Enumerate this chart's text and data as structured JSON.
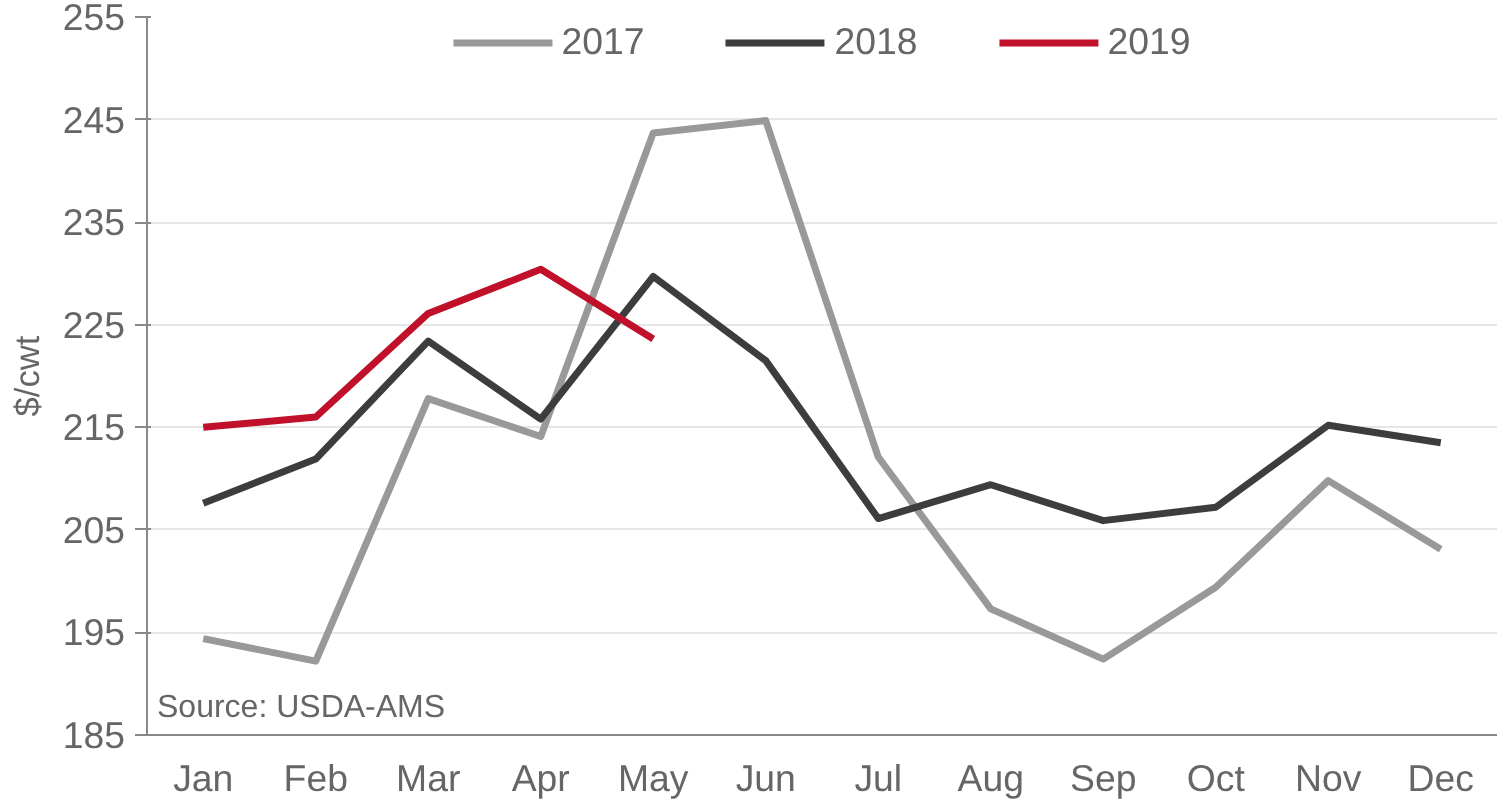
{
  "chart_data": {
    "type": "line",
    "ylabel": "$/cwt",
    "categories": [
      "Jan",
      "Feb",
      "Mar",
      "Apr",
      "May",
      "Jun",
      "Jul",
      "Aug",
      "Sep",
      "Oct",
      "Nov",
      "Dec"
    ],
    "series": [
      {
        "name": "2017",
        "color": "#999999",
        "values": [
          194.4,
          192.2,
          217.8,
          214.1,
          243.7,
          244.9,
          212.1,
          197.3,
          192.4,
          199.4,
          209.8,
          203.1
        ]
      },
      {
        "name": "2018",
        "color": "#3d3d3d",
        "values": [
          207.6,
          211.9,
          223.4,
          215.8,
          229.7,
          221.5,
          206.1,
          209.4,
          205.9,
          207.2,
          215.2,
          213.5
        ]
      },
      {
        "name": "2019",
        "color": "#c0102a",
        "values": [
          215.0,
          216.0,
          226.1,
          230.4,
          223.6,
          null,
          null,
          null,
          null,
          null,
          null,
          null
        ]
      }
    ],
    "ylim": [
      185,
      255
    ],
    "yticks": [
      185,
      195,
      205,
      215,
      225,
      235,
      245,
      255
    ],
    "grid": "y",
    "legend": "top",
    "marker": "none",
    "line_style": "solid",
    "annotations": [
      "Source:  USDA-AMS"
    ]
  }
}
